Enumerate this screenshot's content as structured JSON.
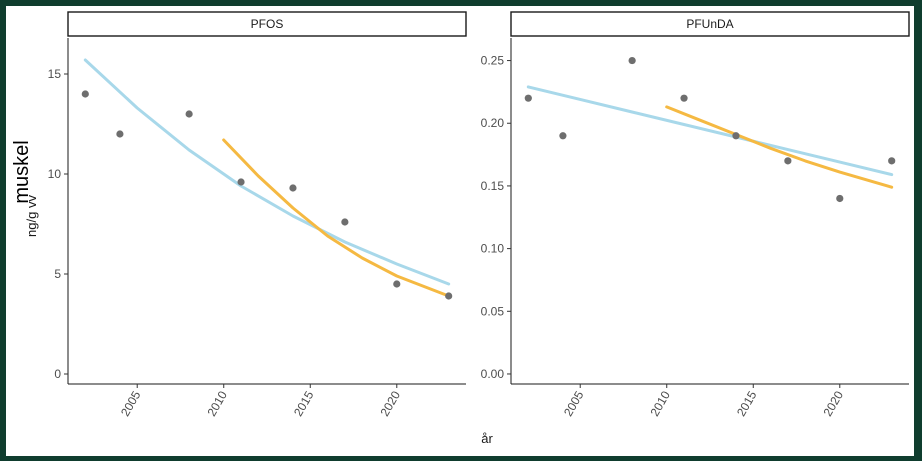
{
  "overlay_label": "muskel",
  "ylabel": "ng/g vv",
  "xlabel": "år",
  "colors": {
    "points": "#6e6e6e",
    "long_trend": "#a8d8ea",
    "short_trend": "#f5b942",
    "background": "#0f3d2e"
  },
  "chart_data": [
    {
      "type": "scatter",
      "title": "PFOS",
      "xlim": [
        2001,
        2024
      ],
      "ylim": [
        -0.5,
        16.8
      ],
      "x_ticks": [
        2005,
        2010,
        2015,
        2020
      ],
      "y_ticks": [
        0,
        5,
        10,
        15
      ],
      "y_tick_labels": [
        "0",
        "5",
        "10",
        "15"
      ],
      "points": {
        "x": [
          2002,
          2004,
          2008,
          2011,
          2014,
          2017,
          2020,
          2023
        ],
        "y": [
          14.0,
          12.0,
          13.0,
          9.6,
          9.3,
          7.6,
          4.5,
          3.9
        ]
      },
      "trend_long": {
        "x": [
          2002,
          2005,
          2008,
          2011,
          2014,
          2017,
          2020,
          2023
        ],
        "y": [
          15.7,
          13.3,
          11.2,
          9.4,
          7.9,
          6.6,
          5.5,
          4.5
        ]
      },
      "trend_short": {
        "x": [
          2010,
          2012,
          2014,
          2016,
          2018,
          2020,
          2023
        ],
        "y": [
          11.7,
          9.9,
          8.3,
          6.9,
          5.8,
          4.9,
          3.9
        ]
      }
    },
    {
      "type": "scatter",
      "title": "PFUnDA",
      "xlim": [
        2001,
        2024
      ],
      "ylim": [
        -0.008,
        0.268
      ],
      "x_ticks": [
        2005,
        2010,
        2015,
        2020
      ],
      "y_ticks": [
        0,
        0.05,
        0.1,
        0.15,
        0.2,
        0.25
      ],
      "y_tick_labels": [
        "0.00",
        "0.05",
        "0.10",
        "0.15",
        "0.20",
        "0.25"
      ],
      "points": {
        "x": [
          2002,
          2004,
          2008,
          2011,
          2014,
          2017,
          2020,
          2023
        ],
        "y": [
          0.22,
          0.19,
          0.25,
          0.22,
          0.19,
          0.17,
          0.14,
          0.17
        ]
      },
      "trend_long": {
        "x": [
          2002,
          2005,
          2008,
          2011,
          2014,
          2017,
          2020,
          2023
        ],
        "y": [
          0.229,
          0.219,
          0.209,
          0.199,
          0.189,
          0.179,
          0.169,
          0.159
        ]
      },
      "trend_short": {
        "x": [
          2010,
          2012,
          2014,
          2016,
          2018,
          2020,
          2023
        ],
        "y": [
          0.213,
          0.202,
          0.191,
          0.18,
          0.17,
          0.161,
          0.149
        ]
      }
    }
  ]
}
